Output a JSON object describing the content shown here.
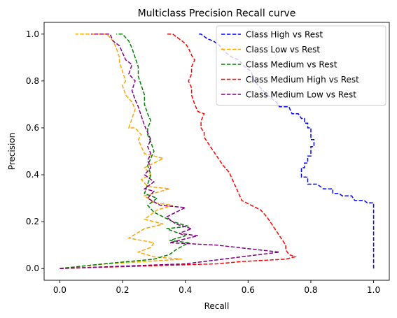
{
  "chart_data": {
    "type": "line",
    "title": "Multiclass Precision Recall curve",
    "xlabel": "Recall",
    "ylabel": "Precision",
    "xlim": [
      -0.05,
      1.05
    ],
    "ylim": [
      -0.05,
      1.05
    ],
    "xticks": [
      "0.0",
      "0.2",
      "0.4",
      "0.6",
      "0.8",
      "1.0"
    ],
    "yticks": [
      "0.0",
      "0.2",
      "0.4",
      "0.6",
      "0.8",
      "1.0"
    ],
    "grid": false,
    "legend_position": "top-right",
    "line_style": "dashed",
    "series": [
      {
        "name": "Class High vs Rest",
        "color": "#0000ff",
        "points": [
          [
            1.0,
            0.0
          ],
          [
            1.0,
            0.28
          ],
          [
            0.98,
            0.28
          ],
          [
            0.97,
            0.29
          ],
          [
            0.94,
            0.29
          ],
          [
            0.93,
            0.31
          ],
          [
            0.9,
            0.31
          ],
          [
            0.89,
            0.32
          ],
          [
            0.87,
            0.32
          ],
          [
            0.87,
            0.34
          ],
          [
            0.84,
            0.34
          ],
          [
            0.83,
            0.35
          ],
          [
            0.82,
            0.36
          ],
          [
            0.79,
            0.36
          ],
          [
            0.79,
            0.39
          ],
          [
            0.77,
            0.39
          ],
          [
            0.77,
            0.43
          ],
          [
            0.78,
            0.43
          ],
          [
            0.78,
            0.45
          ],
          [
            0.79,
            0.45
          ],
          [
            0.79,
            0.48
          ],
          [
            0.8,
            0.48
          ],
          [
            0.8,
            0.52
          ],
          [
            0.81,
            0.52
          ],
          [
            0.81,
            0.55
          ],
          [
            0.8,
            0.55
          ],
          [
            0.8,
            0.6
          ],
          [
            0.79,
            0.6
          ],
          [
            0.79,
            0.62
          ],
          [
            0.78,
            0.62
          ],
          [
            0.78,
            0.64
          ],
          [
            0.77,
            0.64
          ],
          [
            0.76,
            0.66
          ],
          [
            0.74,
            0.66
          ],
          [
            0.73,
            0.69
          ],
          [
            0.7,
            0.69
          ],
          [
            0.69,
            0.71
          ],
          [
            0.67,
            0.73
          ],
          [
            0.64,
            0.77
          ],
          [
            0.62,
            0.8
          ],
          [
            0.61,
            0.84
          ],
          [
            0.59,
            0.86
          ],
          [
            0.57,
            0.89
          ],
          [
            0.55,
            0.9
          ],
          [
            0.53,
            0.92
          ],
          [
            0.51,
            0.95
          ],
          [
            0.49,
            0.97
          ],
          [
            0.47,
            0.98
          ],
          [
            0.45,
            1.0
          ],
          [
            0.44,
            1.0
          ]
        ]
      },
      {
        "name": "Class Low vs Rest",
        "color": "#ffa500",
        "points": [
          [
            0.0,
            0.0
          ],
          [
            0.15,
            0.02
          ],
          [
            0.39,
            0.04
          ],
          [
            0.3,
            0.05
          ],
          [
            0.25,
            0.07
          ],
          [
            0.29,
            0.09
          ],
          [
            0.3,
            0.11
          ],
          [
            0.22,
            0.13
          ],
          [
            0.27,
            0.17
          ],
          [
            0.33,
            0.19
          ],
          [
            0.27,
            0.21
          ],
          [
            0.31,
            0.25
          ],
          [
            0.36,
            0.27
          ],
          [
            0.3,
            0.28
          ],
          [
            0.27,
            0.31
          ],
          [
            0.35,
            0.34
          ],
          [
            0.28,
            0.35
          ],
          [
            0.26,
            0.38
          ],
          [
            0.29,
            0.4
          ],
          [
            0.27,
            0.43
          ],
          [
            0.33,
            0.47
          ],
          [
            0.27,
            0.49
          ],
          [
            0.26,
            0.52
          ],
          [
            0.25,
            0.55
          ],
          [
            0.26,
            0.57
          ],
          [
            0.24,
            0.6
          ],
          [
            0.22,
            0.6
          ],
          [
            0.23,
            0.64
          ],
          [
            0.24,
            0.68
          ],
          [
            0.23,
            0.71
          ],
          [
            0.21,
            0.74
          ],
          [
            0.2,
            0.78
          ],
          [
            0.21,
            0.8
          ],
          [
            0.2,
            0.84
          ],
          [
            0.19,
            0.88
          ],
          [
            0.19,
            0.9
          ],
          [
            0.18,
            0.94
          ],
          [
            0.17,
            0.97
          ],
          [
            0.15,
            1.0
          ],
          [
            0.05,
            1.0
          ]
        ]
      },
      {
        "name": "Class Medium vs Rest",
        "color": "#008000",
        "points": [
          [
            0.0,
            0.0
          ],
          [
            0.14,
            0.02
          ],
          [
            0.3,
            0.04
          ],
          [
            0.35,
            0.06
          ],
          [
            0.37,
            0.08
          ],
          [
            0.41,
            0.11
          ],
          [
            0.35,
            0.12
          ],
          [
            0.4,
            0.14
          ],
          [
            0.34,
            0.17
          ],
          [
            0.41,
            0.18
          ],
          [
            0.36,
            0.2
          ],
          [
            0.33,
            0.22
          ],
          [
            0.3,
            0.24
          ],
          [
            0.28,
            0.27
          ],
          [
            0.31,
            0.3
          ],
          [
            0.27,
            0.32
          ],
          [
            0.28,
            0.36
          ],
          [
            0.29,
            0.4
          ],
          [
            0.28,
            0.44
          ],
          [
            0.29,
            0.47
          ],
          [
            0.3,
            0.5
          ],
          [
            0.29,
            0.54
          ],
          [
            0.28,
            0.57
          ],
          [
            0.28,
            0.6
          ],
          [
            0.29,
            0.63
          ],
          [
            0.28,
            0.66
          ],
          [
            0.27,
            0.7
          ],
          [
            0.27,
            0.74
          ],
          [
            0.26,
            0.78
          ],
          [
            0.25,
            0.82
          ],
          [
            0.25,
            0.86
          ],
          [
            0.24,
            0.9
          ],
          [
            0.23,
            0.94
          ],
          [
            0.22,
            0.97
          ],
          [
            0.2,
            1.0
          ],
          [
            0.18,
            1.0
          ]
        ]
      },
      {
        "name": "Class Medium High vs Rest",
        "color": "#ff0000",
        "points": [
          [
            0.0,
            0.0
          ],
          [
            0.5,
            0.02
          ],
          [
            0.58,
            0.03
          ],
          [
            0.72,
            0.04
          ],
          [
            0.75,
            0.05
          ],
          [
            0.73,
            0.06
          ],
          [
            0.72,
            0.08
          ],
          [
            0.72,
            0.1
          ],
          [
            0.71,
            0.12
          ],
          [
            0.7,
            0.14
          ],
          [
            0.69,
            0.16
          ],
          [
            0.68,
            0.18
          ],
          [
            0.67,
            0.2
          ],
          [
            0.66,
            0.22
          ],
          [
            0.64,
            0.25
          ],
          [
            0.61,
            0.27
          ],
          [
            0.58,
            0.29
          ],
          [
            0.57,
            0.32
          ],
          [
            0.56,
            0.35
          ],
          [
            0.55,
            0.38
          ],
          [
            0.54,
            0.41
          ],
          [
            0.52,
            0.44
          ],
          [
            0.51,
            0.46
          ],
          [
            0.5,
            0.48
          ],
          [
            0.49,
            0.5
          ],
          [
            0.48,
            0.52
          ],
          [
            0.47,
            0.54
          ],
          [
            0.46,
            0.56
          ],
          [
            0.46,
            0.58
          ],
          [
            0.45,
            0.6
          ],
          [
            0.45,
            0.63
          ],
          [
            0.46,
            0.66
          ],
          [
            0.44,
            0.67
          ],
          [
            0.43,
            0.7
          ],
          [
            0.42,
            0.74
          ],
          [
            0.42,
            0.77
          ],
          [
            0.41,
            0.8
          ],
          [
            0.42,
            0.83
          ],
          [
            0.42,
            0.86
          ],
          [
            0.43,
            0.89
          ],
          [
            0.42,
            0.91
          ],
          [
            0.41,
            0.94
          ],
          [
            0.4,
            0.96
          ],
          [
            0.38,
            0.98
          ],
          [
            0.36,
            1.0
          ],
          [
            0.34,
            1.0
          ]
        ]
      },
      {
        "name": "Class Medium Low vs Rest",
        "color": "#800080",
        "points": [
          [
            0.0,
            0.0
          ],
          [
            0.4,
            0.02
          ],
          [
            0.7,
            0.07
          ],
          [
            0.5,
            0.1
          ],
          [
            0.35,
            0.11
          ],
          [
            0.44,
            0.14
          ],
          [
            0.38,
            0.15
          ],
          [
            0.42,
            0.17
          ],
          [
            0.37,
            0.19
          ],
          [
            0.34,
            0.22
          ],
          [
            0.4,
            0.26
          ],
          [
            0.32,
            0.27
          ],
          [
            0.28,
            0.3
          ],
          [
            0.3,
            0.33
          ],
          [
            0.27,
            0.34
          ],
          [
            0.3,
            0.37
          ],
          [
            0.27,
            0.4
          ],
          [
            0.29,
            0.43
          ],
          [
            0.28,
            0.46
          ],
          [
            0.29,
            0.49
          ],
          [
            0.28,
            0.52
          ],
          [
            0.29,
            0.55
          ],
          [
            0.28,
            0.58
          ],
          [
            0.27,
            0.61
          ],
          [
            0.26,
            0.65
          ],
          [
            0.25,
            0.69
          ],
          [
            0.24,
            0.72
          ],
          [
            0.23,
            0.76
          ],
          [
            0.24,
            0.8
          ],
          [
            0.22,
            0.83
          ],
          [
            0.23,
            0.87
          ],
          [
            0.21,
            0.89
          ],
          [
            0.2,
            0.92
          ],
          [
            0.19,
            0.95
          ],
          [
            0.17,
            0.97
          ],
          [
            0.16,
            1.0
          ],
          [
            0.1,
            1.0
          ]
        ]
      }
    ]
  }
}
